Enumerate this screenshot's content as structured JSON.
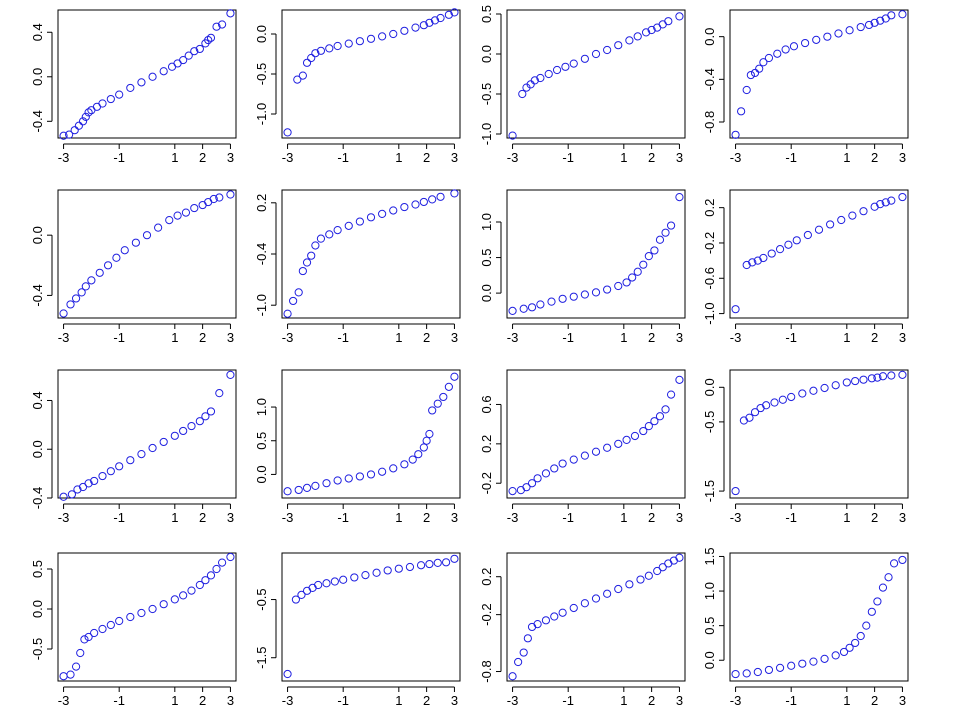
{
  "colors": {
    "points": "#1f1fe0",
    "axes": "#000000",
    "background": "#ffffff"
  },
  "chart_data": [
    {
      "type": "scatter",
      "panel": "r1c1",
      "xlim": [
        -3.2,
        3.2
      ],
      "ylim": [
        -0.55,
        0.6
      ],
      "xticks": [
        -3,
        -1,
        1,
        2,
        3
      ],
      "yticks": [
        -0.4,
        0.0,
        0.4
      ],
      "x": [
        -3,
        -2.8,
        -2.6,
        -2.45,
        -2.3,
        -2.2,
        -2.1,
        -2,
        -1.8,
        -1.6,
        -1.3,
        -1,
        -0.6,
        -0.2,
        0.2,
        0.6,
        0.9,
        1.1,
        1.3,
        1.5,
        1.7,
        1.9,
        2.1,
        2.2,
        2.3,
        2.5,
        2.7,
        3
      ],
      "y": [
        -0.53,
        -0.52,
        -0.48,
        -0.44,
        -0.4,
        -0.36,
        -0.32,
        -0.3,
        -0.27,
        -0.24,
        -0.2,
        -0.16,
        -0.1,
        -0.05,
        0.0,
        0.05,
        0.09,
        0.12,
        0.15,
        0.19,
        0.23,
        0.25,
        0.3,
        0.33,
        0.35,
        0.45,
        0.47,
        0.57
      ]
    },
    {
      "type": "scatter",
      "panel": "r1c2",
      "xlim": [
        -3.2,
        3.2
      ],
      "ylim": [
        -1.3,
        0.3
      ],
      "xticks": [
        -3,
        -1,
        1,
        2,
        3
      ],
      "yticks": [
        -1.0,
        -0.5,
        0.0
      ],
      "x": [
        -3,
        -2.65,
        -2.45,
        -2.3,
        -2.15,
        -2,
        -1.8,
        -1.5,
        -1.2,
        -0.8,
        -0.4,
        0,
        0.4,
        0.8,
        1.2,
        1.6,
        1.9,
        2.1,
        2.3,
        2.5,
        2.8,
        3
      ],
      "y": [
        -1.23,
        -0.57,
        -0.52,
        -0.36,
        -0.3,
        -0.24,
        -0.21,
        -0.18,
        -0.15,
        -0.12,
        -0.09,
        -0.06,
        -0.03,
        0.0,
        0.04,
        0.08,
        0.11,
        0.14,
        0.17,
        0.2,
        0.24,
        0.27
      ]
    },
    {
      "type": "scatter",
      "panel": "r1c3",
      "xlim": [
        -3.2,
        3.2
      ],
      "ylim": [
        -1.05,
        0.55
      ],
      "xticks": [
        -3,
        -1,
        1,
        2,
        3
      ],
      "yticks": [
        -1.0,
        -0.5,
        0.0,
        0.5
      ],
      "x": [
        -3,
        -2.65,
        -2.5,
        -2.35,
        -2.2,
        -2,
        -1.7,
        -1.4,
        -1.1,
        -0.8,
        -0.4,
        0,
        0.4,
        0.8,
        1.2,
        1.5,
        1.8,
        2,
        2.2,
        2.4,
        2.6,
        3
      ],
      "y": [
        -1.02,
        -0.5,
        -0.42,
        -0.38,
        -0.33,
        -0.3,
        -0.25,
        -0.2,
        -0.16,
        -0.12,
        -0.06,
        0.0,
        0.05,
        0.11,
        0.17,
        0.22,
        0.27,
        0.3,
        0.33,
        0.37,
        0.41,
        0.47
      ]
    },
    {
      "type": "scatter",
      "panel": "r1c4",
      "xlim": [
        -3.2,
        3.2
      ],
      "ylim": [
        -0.95,
        0.25
      ],
      "xticks": [
        -3,
        -1,
        1,
        2,
        3
      ],
      "yticks": [
        -0.8,
        -0.4,
        0.0
      ],
      "x": [
        -3,
        -2.8,
        -2.6,
        -2.45,
        -2.3,
        -2.15,
        -2,
        -1.8,
        -1.5,
        -1.2,
        -0.9,
        -0.5,
        -0.1,
        0.3,
        0.7,
        1.1,
        1.5,
        1.8,
        2,
        2.2,
        2.4,
        2.6,
        3
      ],
      "y": [
        -0.92,
        -0.7,
        -0.5,
        -0.36,
        -0.34,
        -0.3,
        -0.24,
        -0.2,
        -0.16,
        -0.12,
        -0.09,
        -0.06,
        -0.03,
        0.0,
        0.03,
        0.06,
        0.09,
        0.11,
        0.13,
        0.15,
        0.17,
        0.2,
        0.21
      ]
    },
    {
      "type": "scatter",
      "panel": "r2c1",
      "xlim": [
        -3.2,
        3.2
      ],
      "ylim": [
        -0.55,
        0.3
      ],
      "xticks": [
        -3,
        -1,
        1,
        2,
        3
      ],
      "yticks": [
        -0.4,
        0.0
      ],
      "x": [
        -3,
        -2.75,
        -2.55,
        -2.35,
        -2.2,
        -2,
        -1.7,
        -1.4,
        -1.1,
        -0.8,
        -0.4,
        0,
        0.4,
        0.8,
        1.1,
        1.4,
        1.7,
        2,
        2.2,
        2.4,
        2.6,
        3
      ],
      "y": [
        -0.52,
        -0.46,
        -0.42,
        -0.38,
        -0.34,
        -0.3,
        -0.25,
        -0.2,
        -0.15,
        -0.1,
        -0.05,
        0.0,
        0.05,
        0.1,
        0.13,
        0.15,
        0.18,
        0.2,
        0.22,
        0.24,
        0.25,
        0.27
      ]
    },
    {
      "type": "scatter",
      "panel": "r2c2",
      "xlim": [
        -3.2,
        3.2
      ],
      "ylim": [
        -1.15,
        0.35
      ],
      "xticks": [
        -3,
        -1,
        1,
        2,
        3
      ],
      "yticks": [
        -1.0,
        -0.4,
        0.2
      ],
      "x": [
        -3,
        -2.8,
        -2.6,
        -2.45,
        -2.3,
        -2.15,
        -2,
        -1.8,
        -1.5,
        -1.2,
        -0.8,
        -0.4,
        0,
        0.4,
        0.8,
        1.2,
        1.6,
        1.9,
        2.2,
        2.5,
        3
      ],
      "y": [
        -1.1,
        -0.95,
        -0.85,
        -0.6,
        -0.5,
        -0.42,
        -0.3,
        -0.22,
        -0.17,
        -0.12,
        -0.07,
        -0.02,
        0.03,
        0.07,
        0.11,
        0.15,
        0.18,
        0.21,
        0.24,
        0.27,
        0.31
      ]
    },
    {
      "type": "scatter",
      "panel": "r2c3",
      "xlim": [
        -3.2,
        3.2
      ],
      "ylim": [
        -0.35,
        1.45
      ],
      "xticks": [
        -3,
        -1,
        1,
        2,
        3
      ],
      "yticks": [
        0.0,
        0.5,
        1.0
      ],
      "x": [
        -3,
        -2.6,
        -2.3,
        -2,
        -1.6,
        -1.2,
        -0.8,
        -0.4,
        0,
        0.4,
        0.8,
        1.1,
        1.3,
        1.5,
        1.7,
        1.9,
        2.1,
        2.3,
        2.5,
        2.7,
        3
      ],
      "y": [
        -0.25,
        -0.22,
        -0.2,
        -0.16,
        -0.12,
        -0.08,
        -0.05,
        -0.02,
        0.01,
        0.05,
        0.1,
        0.15,
        0.22,
        0.3,
        0.4,
        0.52,
        0.6,
        0.75,
        0.85,
        0.95,
        1.35
      ]
    },
    {
      "type": "scatter",
      "panel": "r2c4",
      "xlim": [
        -3.2,
        3.2
      ],
      "ylim": [
        -1.05,
        0.4
      ],
      "xticks": [
        -3,
        -1,
        1,
        2,
        3
      ],
      "yticks": [
        -1.0,
        -0.6,
        -0.2,
        0.2
      ],
      "x": [
        -3,
        -2.6,
        -2.4,
        -2.2,
        -2,
        -1.7,
        -1.4,
        -1.1,
        -0.8,
        -0.4,
        0,
        0.4,
        0.8,
        1.2,
        1.6,
        2,
        2.2,
        2.4,
        2.6,
        3
      ],
      "y": [
        -0.95,
        -0.45,
        -0.42,
        -0.4,
        -0.37,
        -0.32,
        -0.27,
        -0.22,
        -0.17,
        -0.11,
        -0.05,
        0.01,
        0.06,
        0.11,
        0.16,
        0.21,
        0.24,
        0.26,
        0.28,
        0.32
      ]
    },
    {
      "type": "scatter",
      "panel": "r3c1",
      "xlim": [
        -3.2,
        3.2
      ],
      "ylim": [
        -0.4,
        0.65
      ],
      "xticks": [
        -3,
        -1,
        1,
        2,
        3
      ],
      "yticks": [
        -0.4,
        0.0,
        0.4
      ],
      "x": [
        -3,
        -2.7,
        -2.5,
        -2.3,
        -2.1,
        -1.9,
        -1.6,
        -1.3,
        -1,
        -0.6,
        -0.2,
        0.2,
        0.6,
        1,
        1.3,
        1.6,
        1.9,
        2.1,
        2.3,
        2.6,
        3
      ],
      "y": [
        -0.39,
        -0.37,
        -0.33,
        -0.31,
        -0.28,
        -0.26,
        -0.22,
        -0.18,
        -0.14,
        -0.09,
        -0.04,
        0.01,
        0.06,
        0.11,
        0.15,
        0.19,
        0.23,
        0.27,
        0.31,
        0.46,
        0.61
      ]
    },
    {
      "type": "scatter",
      "panel": "r3c2",
      "xlim": [
        -3.2,
        3.2
      ],
      "ylim": [
        -0.35,
        1.55
      ],
      "xticks": [
        -3,
        -1,
        1,
        2,
        3
      ],
      "yticks": [
        0.0,
        0.5,
        1.0
      ],
      "x": [
        -3,
        -2.6,
        -2.3,
        -2,
        -1.6,
        -1.2,
        -0.8,
        -0.4,
        0,
        0.4,
        0.8,
        1.2,
        1.5,
        1.7,
        1.9,
        2,
        2.1,
        2.2,
        2.4,
        2.6,
        2.8,
        3
      ],
      "y": [
        -0.25,
        -0.23,
        -0.2,
        -0.17,
        -0.13,
        -0.09,
        -0.06,
        -0.03,
        0.0,
        0.04,
        0.09,
        0.15,
        0.22,
        0.3,
        0.4,
        0.5,
        0.6,
        0.95,
        1.05,
        1.15,
        1.3,
        1.45
      ]
    },
    {
      "type": "scatter",
      "panel": "r3c3",
      "xlim": [
        -3.2,
        3.2
      ],
      "ylim": [
        -0.35,
        0.95
      ],
      "xticks": [
        -3,
        -1,
        1,
        2,
        3
      ],
      "yticks": [
        -0.2,
        0.2,
        0.6
      ],
      "x": [
        -3,
        -2.7,
        -2.5,
        -2.3,
        -2.1,
        -1.8,
        -1.5,
        -1.2,
        -0.8,
        -0.4,
        0,
        0.4,
        0.8,
        1.1,
        1.4,
        1.7,
        1.9,
        2.1,
        2.3,
        2.5,
        2.7,
        3
      ],
      "y": [
        -0.28,
        -0.27,
        -0.24,
        -0.2,
        -0.15,
        -0.1,
        -0.05,
        0.0,
        0.04,
        0.08,
        0.12,
        0.16,
        0.2,
        0.24,
        0.28,
        0.33,
        0.38,
        0.43,
        0.48,
        0.55,
        0.7,
        0.85
      ]
    },
    {
      "type": "scatter",
      "panel": "r3c4",
      "xlim": [
        -3.2,
        3.2
      ],
      "ylim": [
        -1.6,
        0.25
      ],
      "xticks": [
        -3,
        -1,
        1,
        2,
        3
      ],
      "yticks": [
        -1.5,
        -0.5,
        0.0
      ],
      "x": [
        -3,
        -2.7,
        -2.5,
        -2.3,
        -2.1,
        -1.9,
        -1.6,
        -1.3,
        -1,
        -0.6,
        -0.2,
        0.2,
        0.6,
        1,
        1.3,
        1.6,
        1.9,
        2.1,
        2.3,
        2.6,
        3
      ],
      "y": [
        -1.5,
        -0.48,
        -0.44,
        -0.36,
        -0.3,
        -0.26,
        -0.22,
        -0.18,
        -0.14,
        -0.09,
        -0.05,
        -0.01,
        0.03,
        0.07,
        0.09,
        0.11,
        0.13,
        0.14,
        0.16,
        0.17,
        0.18
      ]
    },
    {
      "type": "scatter",
      "panel": "r4c1",
      "xlim": [
        -3.2,
        3.2
      ],
      "ylim": [
        -0.9,
        0.7
      ],
      "xticks": [
        -3,
        -1,
        1,
        2,
        3
      ],
      "yticks": [
        -0.5,
        0.0,
        0.5
      ],
      "x": [
        -3,
        -2.75,
        -2.55,
        -2.4,
        -2.25,
        -2.1,
        -1.9,
        -1.6,
        -1.3,
        -1,
        -0.6,
        -0.2,
        0.2,
        0.6,
        1,
        1.3,
        1.6,
        1.9,
        2.1,
        2.3,
        2.5,
        2.7,
        3
      ],
      "y": [
        -0.84,
        -0.82,
        -0.72,
        -0.55,
        -0.38,
        -0.35,
        -0.3,
        -0.25,
        -0.2,
        -0.15,
        -0.1,
        -0.05,
        0.0,
        0.06,
        0.12,
        0.17,
        0.23,
        0.3,
        0.36,
        0.42,
        0.5,
        0.58,
        0.65
      ]
    },
    {
      "type": "scatter",
      "panel": "r4c2",
      "xlim": [
        -3.2,
        3.2
      ],
      "ylim": [
        -1.9,
        0.3
      ],
      "xticks": [
        -3,
        -1,
        1,
        2,
        3
      ],
      "yticks": [
        -1.5,
        -0.5
      ],
      "x": [
        -3,
        -2.7,
        -2.5,
        -2.3,
        -2.1,
        -1.9,
        -1.6,
        -1.3,
        -1,
        -0.6,
        -0.2,
        0.2,
        0.6,
        1,
        1.4,
        1.8,
        2.1,
        2.4,
        2.7,
        3
      ],
      "y": [
        -1.78,
        -0.5,
        -0.42,
        -0.35,
        -0.3,
        -0.25,
        -0.22,
        -0.19,
        -0.16,
        -0.12,
        -0.08,
        -0.04,
        0.0,
        0.03,
        0.06,
        0.09,
        0.11,
        0.13,
        0.14,
        0.2
      ]
    },
    {
      "type": "scatter",
      "panel": "r4c3",
      "xlim": [
        -3.2,
        3.2
      ],
      "ylim": [
        -0.9,
        0.45
      ],
      "xticks": [
        -3,
        -1,
        1,
        2,
        3
      ],
      "yticks": [
        -0.8,
        -0.2,
        0.2
      ],
      "x": [
        -3,
        -2.8,
        -2.6,
        -2.45,
        -2.3,
        -2.1,
        -1.8,
        -1.5,
        -1.2,
        -0.8,
        -0.4,
        0,
        0.4,
        0.8,
        1.2,
        1.6,
        1.9,
        2.2,
        2.4,
        2.6,
        2.8,
        3
      ],
      "y": [
        -0.85,
        -0.7,
        -0.6,
        -0.45,
        -0.33,
        -0.3,
        -0.26,
        -0.22,
        -0.18,
        -0.13,
        -0.08,
        -0.03,
        0.02,
        0.07,
        0.12,
        0.17,
        0.21,
        0.26,
        0.3,
        0.34,
        0.37,
        0.4
      ]
    },
    {
      "type": "scatter",
      "panel": "r4c4",
      "xlim": [
        -3.2,
        3.2
      ],
      "ylim": [
        -0.3,
        1.55
      ],
      "xticks": [
        -3,
        -1,
        1,
        2,
        3
      ],
      "yticks": [
        0.0,
        0.5,
        1.0,
        1.5
      ],
      "x": [
        -3,
        -2.6,
        -2.2,
        -1.8,
        -1.4,
        -1,
        -0.6,
        -0.2,
        0.2,
        0.6,
        0.9,
        1.1,
        1.3,
        1.5,
        1.7,
        1.9,
        2.1,
        2.3,
        2.5,
        2.7,
        3
      ],
      "y": [
        -0.2,
        -0.19,
        -0.17,
        -0.14,
        -0.11,
        -0.08,
        -0.05,
        -0.02,
        0.02,
        0.07,
        0.12,
        0.18,
        0.25,
        0.35,
        0.5,
        0.7,
        0.85,
        1.05,
        1.2,
        1.4,
        1.45
      ]
    }
  ]
}
